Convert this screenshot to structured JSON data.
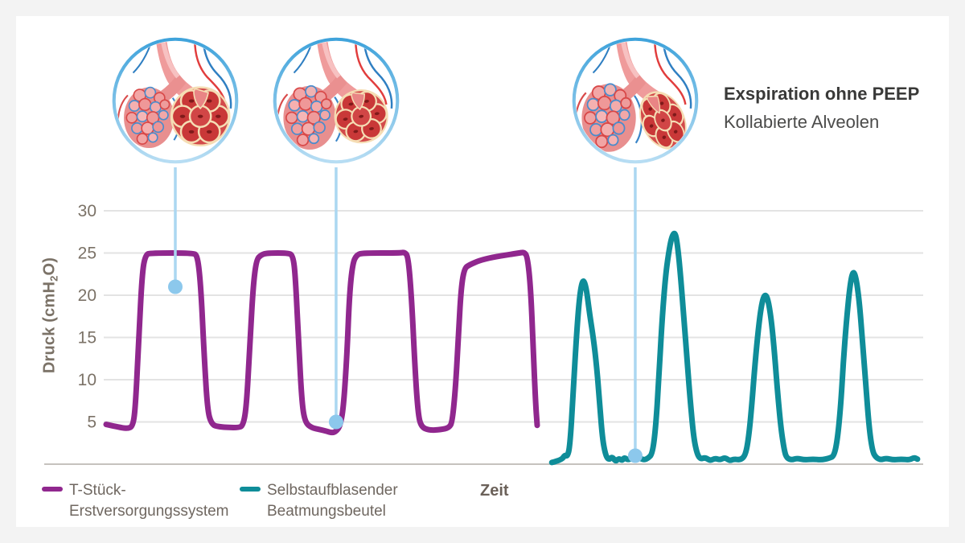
{
  "annotation": {
    "title": "Exspiration ohne PEEP",
    "subtitle": "Kollabierte Alveolen"
  },
  "axis": {
    "y_label_full": "Druck (cmH₂O)",
    "y_label_pre": "Druck (cmH",
    "y_label_sub": "2",
    "y_label_post": "O)",
    "x_label": "Zeit"
  },
  "legend": [
    {
      "line1": "T-Stück-",
      "line2": "Erstversorgungssystem",
      "color": "#90278e"
    },
    {
      "line1": "Selbstaufblasender",
      "line2": "Beatmungsbeutel",
      "color": "#0f8d99"
    }
  ],
  "colors": {
    "background": "#f3f3f3",
    "card": "#ffffff",
    "grid": "#e3e3e3",
    "axis": "#c6c2be",
    "tick_text": "#7b7267",
    "purple": "#90278e",
    "teal": "#0f8d99",
    "callout_line": "#abd7f1",
    "callout_dot": "#8cc8ec",
    "ring_top": "#3fa3db",
    "ring_bottom": "#b7ddf3"
  },
  "illustrations": {
    "states": [
      {
        "name": "alveoli-inflated"
      },
      {
        "name": "alveoli-partially-inflated"
      },
      {
        "name": "alveoli-collapsed"
      }
    ]
  },
  "chart_data": {
    "type": "line",
    "title": "",
    "xlabel": "Zeit",
    "ylabel": "Druck (cmH₂O)",
    "ylim": [
      0,
      32
    ],
    "xlim": [
      0,
      100
    ],
    "x_note": "time axis unlabeled, normalized 0-100",
    "grid": true,
    "legend_position": "bottom",
    "y_ticks": [
      30,
      25,
      20,
      15,
      10,
      5
    ],
    "series": [
      {
        "name": "T-Stück-Erstversorgungssystem",
        "color": "#90278e",
        "points": [
          [
            0.2,
            4.7
          ],
          [
            1.6,
            4.4
          ],
          [
            2.8,
            4.2
          ],
          [
            3.5,
            4.5
          ],
          [
            3.8,
            7
          ],
          [
            4.2,
            15
          ],
          [
            4.6,
            22.5
          ],
          [
            5.0,
            24.8
          ],
          [
            5.7,
            25
          ],
          [
            10.8,
            25
          ],
          [
            11.4,
            24.7
          ],
          [
            11.8,
            21
          ],
          [
            12.2,
            13
          ],
          [
            12.6,
            6.5
          ],
          [
            13.1,
            4.7
          ],
          [
            14.0,
            4.4
          ],
          [
            16.4,
            4.3
          ],
          [
            17.0,
            4.6
          ],
          [
            17.4,
            7
          ],
          [
            17.8,
            14
          ],
          [
            18.2,
            21
          ],
          [
            18.6,
            24.2
          ],
          [
            19.2,
            24.8
          ],
          [
            20.0,
            25
          ],
          [
            22.5,
            25
          ],
          [
            23.1,
            24.7
          ],
          [
            23.4,
            22
          ],
          [
            23.8,
            14
          ],
          [
            24.2,
            7
          ],
          [
            24.6,
            4.9
          ],
          [
            25.4,
            4.3
          ],
          [
            26.4,
            4.1
          ],
          [
            27.2,
            3.9
          ],
          [
            27.9,
            3.7
          ],
          [
            28.4,
            3.9
          ],
          [
            28.9,
            4.6
          ],
          [
            29.3,
            7
          ],
          [
            29.7,
            13
          ],
          [
            30.0,
            20
          ],
          [
            30.4,
            23.8
          ],
          [
            30.9,
            24.8
          ],
          [
            31.7,
            25
          ],
          [
            36.1,
            25
          ],
          [
            36.8,
            25.1
          ],
          [
            37.2,
            24.5
          ],
          [
            37.6,
            20
          ],
          [
            38.0,
            12
          ],
          [
            38.4,
            6
          ],
          [
            38.8,
            4.4
          ],
          [
            39.8,
            4.0
          ],
          [
            41.2,
            4.1
          ],
          [
            42.2,
            4.3
          ],
          [
            42.6,
            5
          ],
          [
            43.0,
            9
          ],
          [
            43.4,
            16
          ],
          [
            43.7,
            21
          ],
          [
            44.1,
            23.2
          ],
          [
            44.7,
            23.6
          ],
          [
            45.9,
            24.1
          ],
          [
            47.5,
            24.5
          ],
          [
            49.5,
            24.8
          ],
          [
            50.8,
            25
          ],
          [
            51.4,
            25.1
          ],
          [
            51.8,
            24.6
          ],
          [
            52.2,
            21
          ],
          [
            52.5,
            14
          ],
          [
            52.8,
            7.5
          ],
          [
            53.0,
            4.6
          ]
        ]
      },
      {
        "name": "Selbstaufblasender Beatmungsbeutel",
        "color": "#0f8d99",
        "points": [
          [
            54.8,
            0.2
          ],
          [
            56.0,
            0.5
          ],
          [
            56.4,
            1.1
          ],
          [
            56.7,
            0.9
          ],
          [
            57.0,
            2
          ],
          [
            57.4,
            8
          ],
          [
            57.8,
            15
          ],
          [
            58.2,
            20
          ],
          [
            58.6,
            22
          ],
          [
            59.0,
            21
          ],
          [
            59.4,
            18
          ],
          [
            59.8,
            15.5
          ],
          [
            60.2,
            12.5
          ],
          [
            60.6,
            8
          ],
          [
            61.0,
            3
          ],
          [
            61.4,
            1
          ],
          [
            61.8,
            0.5
          ],
          [
            62.2,
            0.9
          ],
          [
            62.6,
            0.3
          ],
          [
            63.0,
            0.7
          ],
          [
            63.4,
            0.4
          ],
          [
            63.7,
            0.8
          ],
          [
            64.1,
            0.5
          ],
          [
            64.6,
            0.7
          ],
          [
            65.1,
            1.0
          ],
          [
            65.6,
            0.7
          ],
          [
            66.1,
            0.5
          ],
          [
            66.6,
            0.7
          ],
          [
            67.1,
            1.2
          ],
          [
            67.5,
            4
          ],
          [
            67.9,
            10
          ],
          [
            68.3,
            17
          ],
          [
            68.7,
            22
          ],
          [
            69.1,
            25
          ],
          [
            69.5,
            27
          ],
          [
            69.9,
            27.5
          ],
          [
            70.2,
            26
          ],
          [
            70.6,
            22
          ],
          [
            71.0,
            17
          ],
          [
            71.4,
            12
          ],
          [
            71.8,
            7
          ],
          [
            72.2,
            3
          ],
          [
            72.6,
            1.2
          ],
          [
            73.0,
            0.6
          ],
          [
            73.6,
            0.8
          ],
          [
            74.2,
            0.4
          ],
          [
            74.8,
            0.7
          ],
          [
            75.4,
            0.5
          ],
          [
            76.0,
            0.8
          ],
          [
            76.6,
            0.4
          ],
          [
            77.1,
            0.6
          ],
          [
            77.9,
            0.5
          ],
          [
            78.5,
            1
          ],
          [
            78.9,
            3
          ],
          [
            79.3,
            7
          ],
          [
            79.7,
            12
          ],
          [
            80.1,
            16
          ],
          [
            80.5,
            19
          ],
          [
            80.9,
            20.2
          ],
          [
            81.3,
            19.5
          ],
          [
            81.7,
            17
          ],
          [
            82.1,
            13
          ],
          [
            82.5,
            8
          ],
          [
            82.9,
            4
          ],
          [
            83.3,
            1.5
          ],
          [
            83.6,
            0.7
          ],
          [
            84.2,
            0.5
          ],
          [
            84.8,
            0.7
          ],
          [
            85.8,
            0.5
          ],
          [
            86.8,
            0.6
          ],
          [
            87.8,
            0.5
          ],
          [
            88.8,
            0.7
          ],
          [
            89.4,
            1
          ],
          [
            89.8,
            3
          ],
          [
            90.2,
            7
          ],
          [
            90.5,
            12
          ],
          [
            90.9,
            17
          ],
          [
            91.3,
            21
          ],
          [
            91.7,
            23
          ],
          [
            92.1,
            22
          ],
          [
            92.5,
            19
          ],
          [
            92.9,
            14
          ],
          [
            93.3,
            9
          ],
          [
            93.7,
            4
          ],
          [
            94.1,
            1.5
          ],
          [
            94.5,
            0.8
          ],
          [
            95.1,
            0.5
          ],
          [
            95.7,
            0.7
          ],
          [
            96.7,
            0.5
          ],
          [
            97.6,
            0.6
          ],
          [
            98.6,
            0.5
          ],
          [
            99.2,
            0.8
          ],
          [
            99.6,
            0.6
          ]
        ]
      }
    ],
    "callout_markers": [
      {
        "t": 8.67,
        "value": 21,
        "links_to": "alveoli-inflated"
      },
      {
        "t": 28.37,
        "value": 5,
        "links_to": "alveoli-partially-inflated"
      },
      {
        "t": 65.02,
        "value": 1.0,
        "links_to": "alveoli-collapsed"
      }
    ]
  }
}
